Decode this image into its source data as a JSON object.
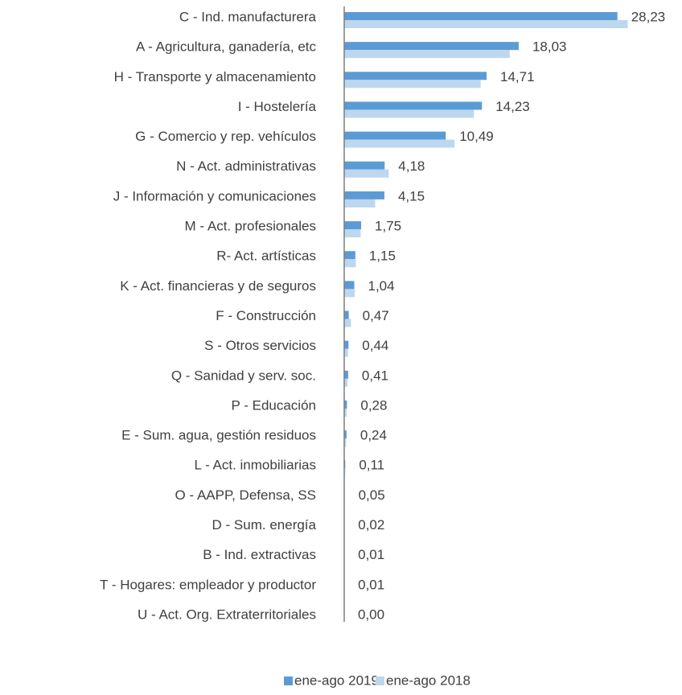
{
  "chart_data": {
    "type": "bar",
    "orientation": "horizontal",
    "categories": [
      "C - Ind. manufacturera",
      "A - Agricultura, ganadería, etc",
      "H - Transporte y almacenamiento",
      "I - Hostelería",
      "G - Comercio y rep. vehículos",
      "N - Act. administrativas",
      "J - Información y comunicaciones",
      "M - Act. profesionales",
      "R-  Act. artísticas",
      "K - Act. financieras y de seguros",
      "F - Construcción",
      "S - Otros servicios",
      "Q - Sanidad y serv. soc.",
      "P - Educación",
      "E - Sum. agua, gestión residuos",
      "L - Act. inmobiliarias",
      "O - AAPP, Defensa, SS",
      "D - Sum. energía",
      "B - Ind. extractivas",
      "T - Hogares: empleador y productor",
      "U - Act. Org. Extraterritoriales"
    ],
    "series": [
      {
        "name": "ene-ago 2019",
        "color": "#5b9bd5",
        "values": [
          28.23,
          18.03,
          14.71,
          14.23,
          10.49,
          4.18,
          4.15,
          1.75,
          1.15,
          1.04,
          0.47,
          0.44,
          0.41,
          0.28,
          0.24,
          0.11,
          0.05,
          0.02,
          0.01,
          0.01,
          0.0
        ],
        "value_labels": [
          "28,23",
          "18,03",
          "14,71",
          "14,23",
          "10,49",
          "4,18",
          "4,15",
          "1,75",
          "1,15",
          "1,04",
          "0,47",
          "0,44",
          "0,41",
          "0,28",
          "0,24",
          "0,11",
          "0,05",
          "0,02",
          "0,01",
          "0,01",
          "0,00"
        ]
      },
      {
        "name": "ene-ago 2018",
        "color": "#bdd7ee",
        "values": [
          29.3,
          17.1,
          14.1,
          13.4,
          11.4,
          4.6,
          3.2,
          1.7,
          1.2,
          1.1,
          0.7,
          0.4,
          0.35,
          0.25,
          0.2,
          0.1,
          0.05,
          0.02,
          0.01,
          0.01,
          0.0
        ]
      }
    ],
    "xlim": [
      0,
      30
    ],
    "legend": "bottom"
  }
}
